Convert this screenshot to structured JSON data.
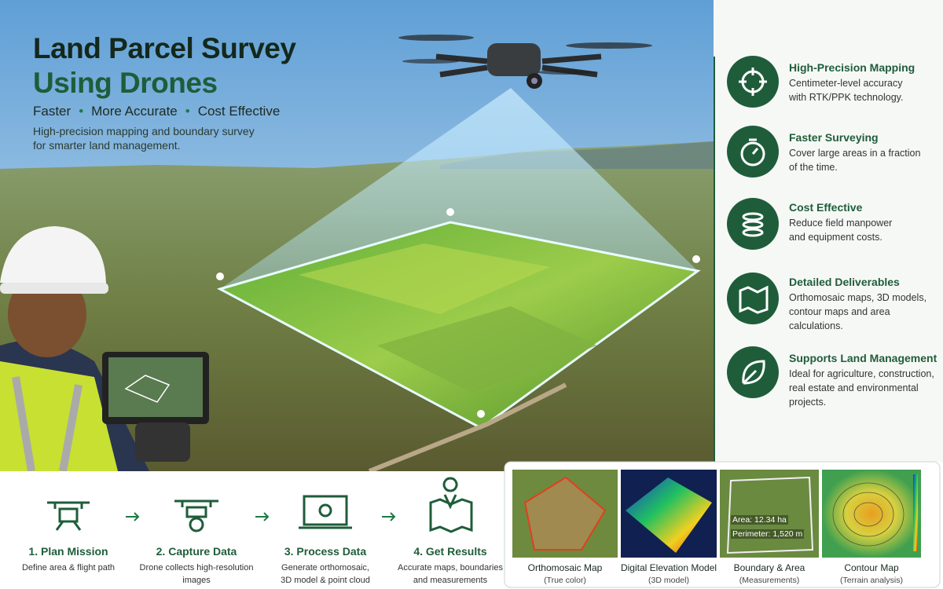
{
  "header": {
    "title_lines": [
      "Land Parcel Survey",
      "Using Drones"
    ],
    "taglines": [
      "Faster",
      "More Accurate",
      "Cost Effective"
    ],
    "description_lines": [
      "High-precision mapping and boundary survey",
      "for smarter land management."
    ]
  },
  "features": [
    {
      "title": "High-Precision Mapping",
      "lines": [
        "Centimeter-level accuracy",
        "with RTK/PPK technology."
      ]
    },
    {
      "title": "Faster Surveying",
      "lines": [
        "Cover large areas in a fraction",
        "of the time."
      ]
    },
    {
      "title": "Cost Effective",
      "lines": [
        "Reduce field manpower",
        "and equipment costs."
      ]
    },
    {
      "title": "Detailed Deliverables",
      "lines": [
        "Orthomosaic maps, 3D models,",
        "contour maps and area calculations."
      ]
    },
    {
      "title": "Supports Land Management",
      "lines": [
        "Ideal for agriculture, construction,",
        "real estate and environmental projects."
      ]
    }
  ],
  "steps": [
    {
      "title": "1. Plan Mission",
      "lines": [
        "Define area & flight path"
      ]
    },
    {
      "title": "2. Capture Data",
      "lines": [
        "Drone collects high-resolution",
        "images"
      ]
    },
    {
      "title": "3. Process Data",
      "lines": [
        "Generate orthomosaic,",
        "3D model & point cloud"
      ]
    },
    {
      "title": "4. Get Results",
      "lines": [
        "Accurate maps, boundaries",
        "and measurements"
      ]
    }
  ],
  "deliverables": [
    {
      "title": "Orthomosaic Map",
      "subtitle": "(True color)"
    },
    {
      "title": "Digital Elevation Model",
      "subtitle": "(3D model)"
    },
    {
      "title": "Boundary & Area",
      "subtitle": "(Measurements)",
      "annotations": [
        "Area: 12.34 ha",
        "Perimeter: 1,520 m"
      ]
    },
    {
      "title": "Contour Map",
      "subtitle": "(Terrain analysis)"
    }
  ]
}
